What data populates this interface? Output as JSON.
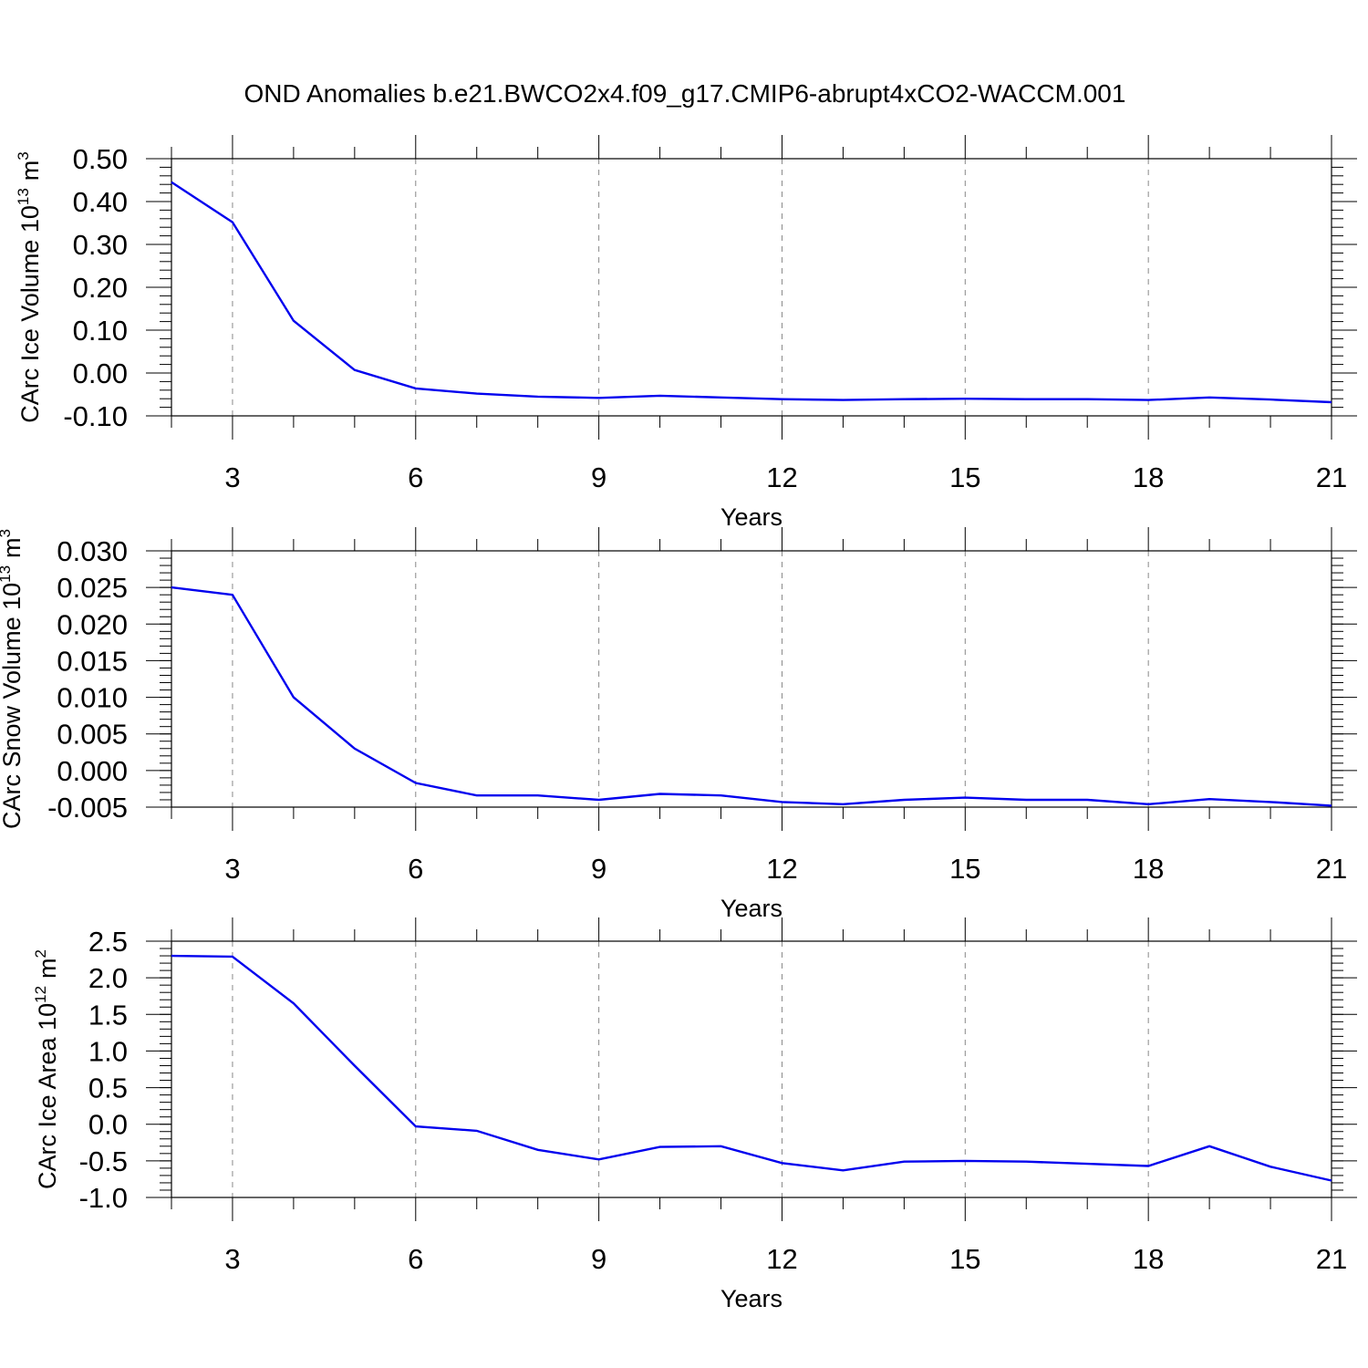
{
  "title": "OND Anomalies b.e21.BWCO2x4.f09_g17.CMIP6-abrupt4xCO2-WACCM.001",
  "colors": {
    "series": "#0000ee",
    "grid": "#888888"
  },
  "chart_data": [
    {
      "type": "line",
      "ylabel": "CArc Ice Volume 10",
      "ylabel_exp": "13",
      "ylabel_unit": "m",
      "ylabel_unit_exp": "3",
      "xlabel": "Years",
      "xlim": [
        2,
        21
      ],
      "ylim": [
        -0.1,
        0.5
      ],
      "yticks": [
        -0.1,
        0.0,
        0.1,
        0.2,
        0.3,
        0.4,
        0.5
      ],
      "ytick_labels": [
        "-0.10",
        "0.00",
        "0.10",
        "0.20",
        "0.30",
        "0.40",
        "0.50"
      ],
      "yminor_step": 0.02,
      "xticks": [
        3,
        6,
        9,
        12,
        15,
        18,
        21
      ],
      "xtick_labels": [
        "3",
        "6",
        "9",
        "12",
        "15",
        "18",
        "21"
      ],
      "x": [
        2,
        3,
        4,
        5,
        6,
        7,
        8,
        9,
        10,
        11,
        12,
        13,
        14,
        15,
        16,
        17,
        18,
        19,
        20,
        21
      ],
      "values": [
        0.445,
        0.352,
        0.122,
        0.007,
        -0.036,
        -0.048,
        -0.055,
        -0.058,
        -0.053,
        -0.057,
        -0.061,
        -0.063,
        -0.061,
        -0.06,
        -0.061,
        -0.061,
        -0.063,
        -0.057,
        -0.062,
        -0.068
      ]
    },
    {
      "type": "line",
      "ylabel": "CArc Snow Volume 10",
      "ylabel_exp": "13",
      "ylabel_unit": "m",
      "ylabel_unit_exp": "3",
      "xlabel": "Years",
      "xlim": [
        2,
        21
      ],
      "ylim": [
        -0.005,
        0.03
      ],
      "yticks": [
        -0.005,
        0.0,
        0.005,
        0.01,
        0.015,
        0.02,
        0.025,
        0.03
      ],
      "ytick_labels": [
        "-0.005",
        "0.000",
        "0.005",
        "0.010",
        "0.015",
        "0.020",
        "0.025",
        "0.030"
      ],
      "yminor_step": 0.001,
      "xticks": [
        3,
        6,
        9,
        12,
        15,
        18,
        21
      ],
      "xtick_labels": [
        "3",
        "6",
        "9",
        "12",
        "15",
        "18",
        "21"
      ],
      "x": [
        2,
        3,
        4,
        5,
        6,
        7,
        8,
        9,
        10,
        11,
        12,
        13,
        14,
        15,
        16,
        17,
        18,
        19,
        20,
        21
      ],
      "values": [
        0.025,
        0.024,
        0.01,
        0.003,
        -0.0017,
        -0.0034,
        -0.0034,
        -0.004,
        -0.0032,
        -0.0034,
        -0.0043,
        -0.0046,
        -0.004,
        -0.0037,
        -0.004,
        -0.004,
        -0.0046,
        -0.0039,
        -0.0043,
        -0.0048
      ]
    },
    {
      "type": "line",
      "ylabel": "CArc Ice Area 10",
      "ylabel_exp": "12",
      "ylabel_unit": "m",
      "ylabel_unit_exp": "2",
      "xlabel": "Years",
      "xlim": [
        2,
        21
      ],
      "ylim": [
        -1.0,
        2.5
      ],
      "yticks": [
        -1.0,
        -0.5,
        0.0,
        0.5,
        1.0,
        1.5,
        2.0,
        2.5
      ],
      "ytick_labels": [
        "-1.0",
        "-0.5",
        "0.0",
        "0.5",
        "1.0",
        "1.5",
        "2.0",
        "2.5"
      ],
      "yminor_step": 0.1,
      "xticks": [
        3,
        6,
        9,
        12,
        15,
        18,
        21
      ],
      "xtick_labels": [
        "3",
        "6",
        "9",
        "12",
        "15",
        "18",
        "21"
      ],
      "x": [
        2,
        3,
        4,
        5,
        6,
        7,
        8,
        9,
        10,
        11,
        12,
        13,
        14,
        15,
        16,
        17,
        18,
        19,
        20,
        21
      ],
      "values": [
        2.3,
        2.29,
        1.65,
        0.8,
        -0.03,
        -0.09,
        -0.35,
        -0.48,
        -0.31,
        -0.3,
        -0.53,
        -0.63,
        -0.51,
        -0.5,
        -0.51,
        -0.54,
        -0.57,
        -0.3,
        -0.58,
        -0.77
      ]
    }
  ]
}
